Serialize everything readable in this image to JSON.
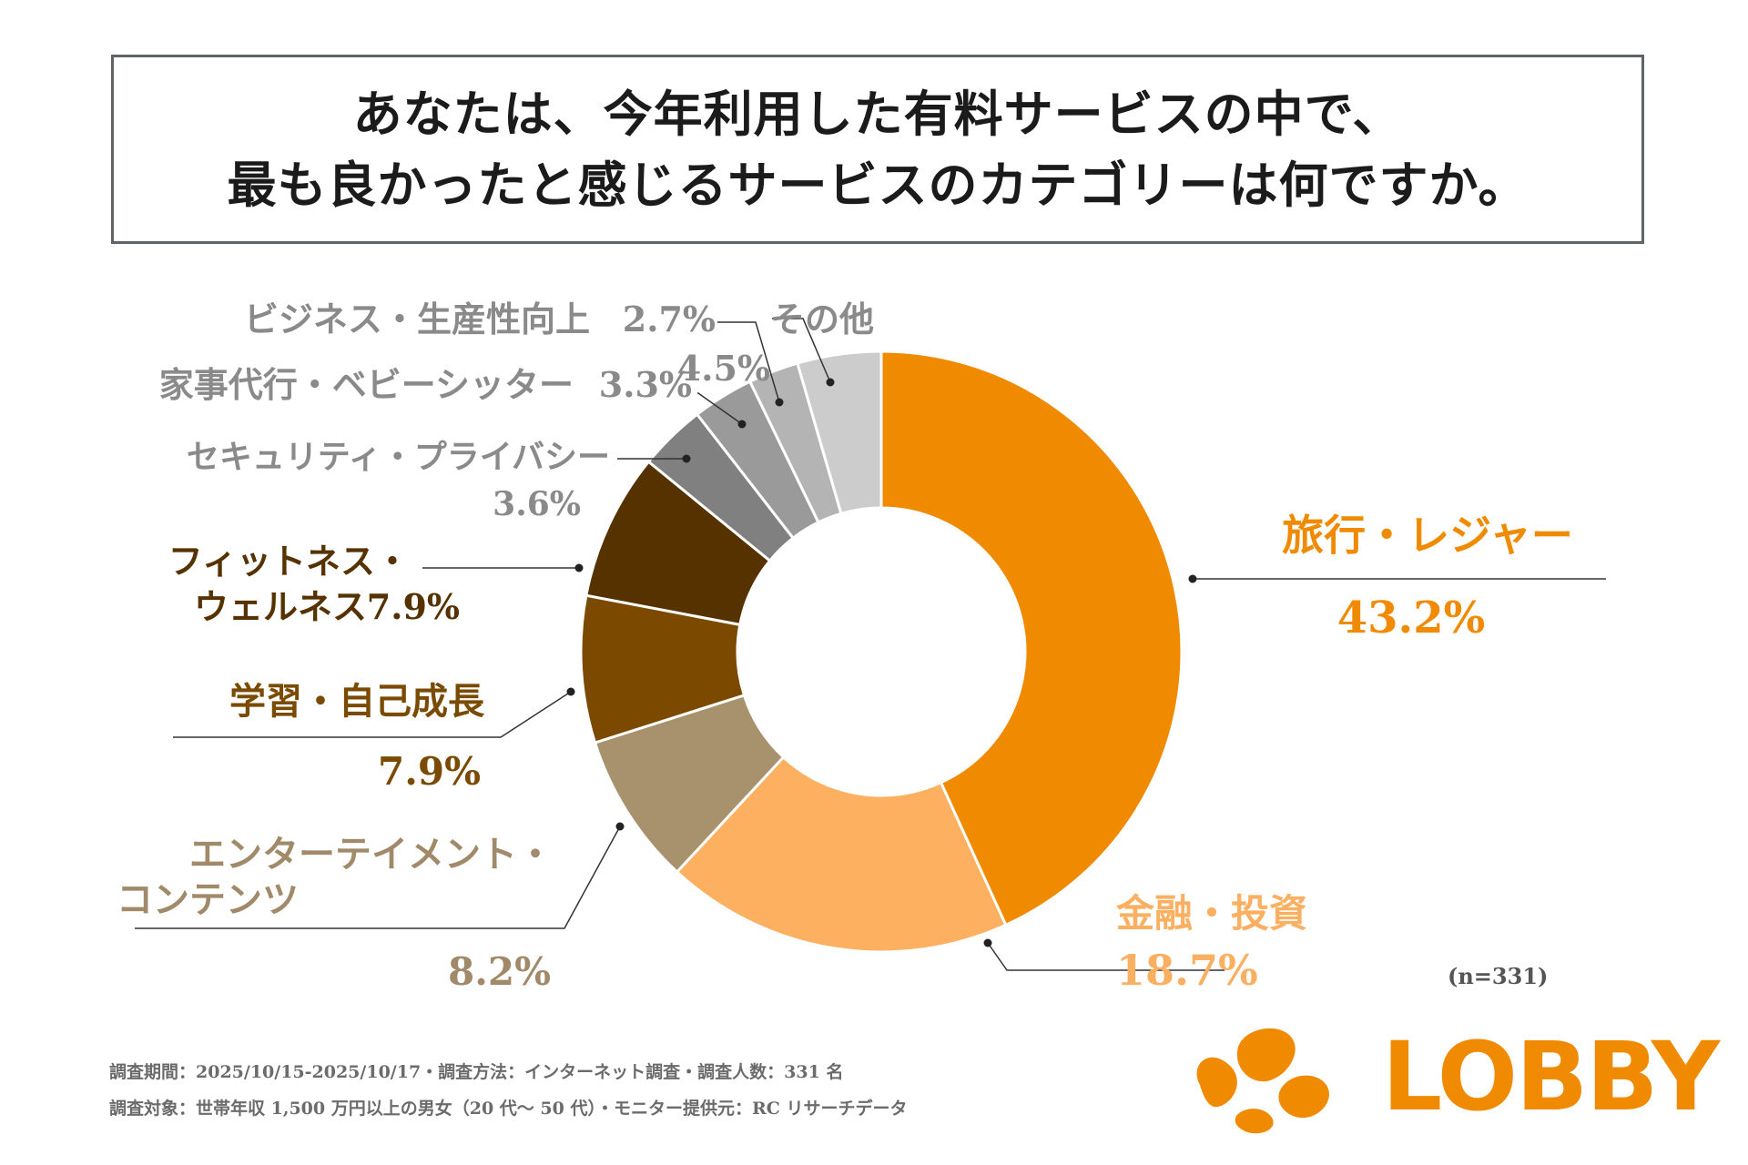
{
  "title": {
    "line1": "あなたは、今年利用した有料サービスの中で、",
    "line2": "最も良かったと感じるサービスのカテゴリーは何ですか。"
  },
  "chart_data": {
    "type": "pie",
    "variant": "donut",
    "title": "あなたは、今年利用した有料サービスの中で、最も良かったと感じるサービスのカテゴリーは何ですか。",
    "unit": "%",
    "sample_note": "(n=331)",
    "slices": [
      {
        "label": "旅行・レジャー",
        "label_lines": [
          "旅行・レジャー"
        ],
        "value": 43.2,
        "value_text": "43.2%",
        "color": "#f08a00",
        "label_color": "#f08a00"
      },
      {
        "label": "金融・投資",
        "label_lines": [
          "金融・投資"
        ],
        "value": 18.7,
        "value_text": "18.7%",
        "color": "#fcb060",
        "label_color": "#fbb061"
      },
      {
        "label": "エンターテイメント・コンテンツ",
        "label_lines": [
          "エンターテイメント・",
          "コンテンツ"
        ],
        "value": 8.2,
        "value_text": "8.2%",
        "color": "#a8916d",
        "label_color": "#a08a69"
      },
      {
        "label": "学習・自己成長",
        "label_lines": [
          "学習・自己成長"
        ],
        "value": 7.9,
        "value_text": "7.9%",
        "color": "#7b4a00",
        "label_color": "#7a4a00"
      },
      {
        "label": "フィットネス・ウェルネス",
        "label_lines": [
          "フィットネス・",
          "ウェルネス"
        ],
        "value": 7.9,
        "value_text": "7.9%",
        "color": "#553200",
        "label_color": "#553200"
      },
      {
        "label": "セキュリティ・プライバシー",
        "label_lines": [
          "セキュリティ・プライバシー"
        ],
        "value": 3.6,
        "value_text": "3.6%",
        "color": "#808080",
        "label_color": "#8a8a8a"
      },
      {
        "label": "家事代行・ベビーシッター",
        "label_lines": [
          "家事代行・ベビーシッター"
        ],
        "value": 3.3,
        "value_text": "3.3%",
        "color": "#9a9a9a",
        "label_color": "#8a8a8a"
      },
      {
        "label": "ビジネス・生産性向上",
        "label_lines": [
          "ビジネス・生産性向上"
        ],
        "value": 2.7,
        "value_text": "2.7%",
        "color": "#b4b4b4",
        "label_color": "#8a8a8a"
      },
      {
        "label": "その他",
        "label_lines": [
          "その他"
        ],
        "value": 4.5,
        "value_text": "4.5%",
        "color": "#cccccc",
        "label_color": "#8a8a8a"
      }
    ]
  },
  "footer": {
    "line1": "調査期間：2025/10/15-2025/10/17・調査方法：インターネット調査・調査人数：331 名",
    "line2": "調査対象：世帯年収 1,500 万円以上の男女（20 代〜 50 代）・モニター提供元：RC リサーチデータ"
  },
  "logo": {
    "text": "LOBBY",
    "color": "#f08a00"
  }
}
